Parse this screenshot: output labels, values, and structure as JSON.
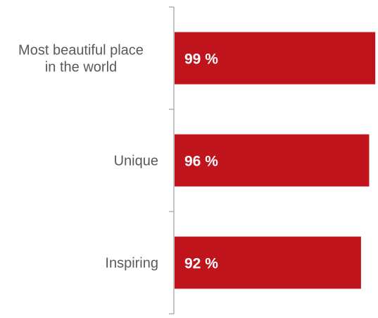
{
  "chart_data": {
    "type": "bar",
    "orientation": "horizontal",
    "categories": [
      [
        "Most beautiful place",
        "in the world"
      ],
      [
        "Unique"
      ],
      [
        "Inspiring"
      ]
    ],
    "values": [
      99,
      96,
      92
    ],
    "value_labels": [
      "99 %",
      "96 %",
      "92 %"
    ],
    "xlim": [
      0,
      100
    ],
    "title": "",
    "xlabel": "",
    "ylabel": "",
    "grid": false,
    "legend": "none",
    "colors": {
      "bar": "#c0141d",
      "axis": "#a6a6a6",
      "category_text": "#595959",
      "value_text": "#ffffff"
    }
  }
}
